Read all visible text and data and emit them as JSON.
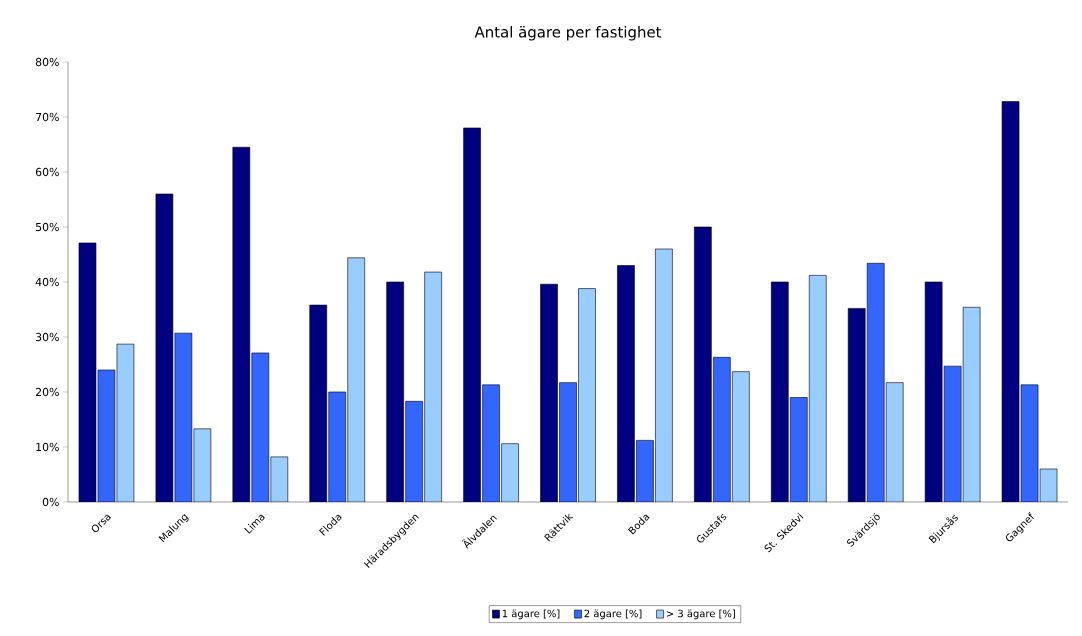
{
  "chart_data": {
    "type": "bar",
    "title": "Antal ägare per fastighet",
    "categories": [
      "Orsa",
      "Malung",
      "Lima",
      "Floda",
      "Häradsbygden",
      "Älvdalen",
      "Rättvik",
      "Boda",
      "Gustafs",
      "St. Skedvi",
      "Svärdsjö",
      "Bjursås",
      "Gagnef"
    ],
    "series": [
      {
        "name": "1 ägare [%]",
        "color": "#000080",
        "values": [
          47.1,
          56,
          64.5,
          35.8,
          40,
          68,
          39.6,
          43,
          50,
          40,
          35.2,
          40,
          72.8
        ]
      },
      {
        "name": "2 ägare [%]",
        "color": "#3366ff",
        "values": [
          24,
          30.7,
          27.1,
          20,
          18.3,
          21.3,
          21.7,
          11.2,
          26.3,
          19,
          43.4,
          24.7,
          21.3
        ]
      },
      {
        "name": "> 3 ägare [%]",
        "color": "#99ccff",
        "values": [
          28.7,
          13.3,
          8.2,
          44.4,
          41.8,
          10.6,
          38.8,
          46,
          23.7,
          41.2,
          21.7,
          35.4,
          6
        ]
      }
    ],
    "ylim": [
      0,
      80
    ],
    "yticks": [
      {
        "value": 0,
        "label": "0%"
      },
      {
        "value": 10,
        "label": "10%"
      },
      {
        "value": 20,
        "label": "20%"
      },
      {
        "value": 30,
        "label": "30%"
      },
      {
        "value": 40,
        "label": "40%"
      },
      {
        "value": 50,
        "label": "50%"
      },
      {
        "value": 60,
        "label": "60%"
      },
      {
        "value": 70,
        "label": "70%"
      },
      {
        "value": 80,
        "label": "80%"
      }
    ],
    "grid": false,
    "legend": "bottom"
  }
}
